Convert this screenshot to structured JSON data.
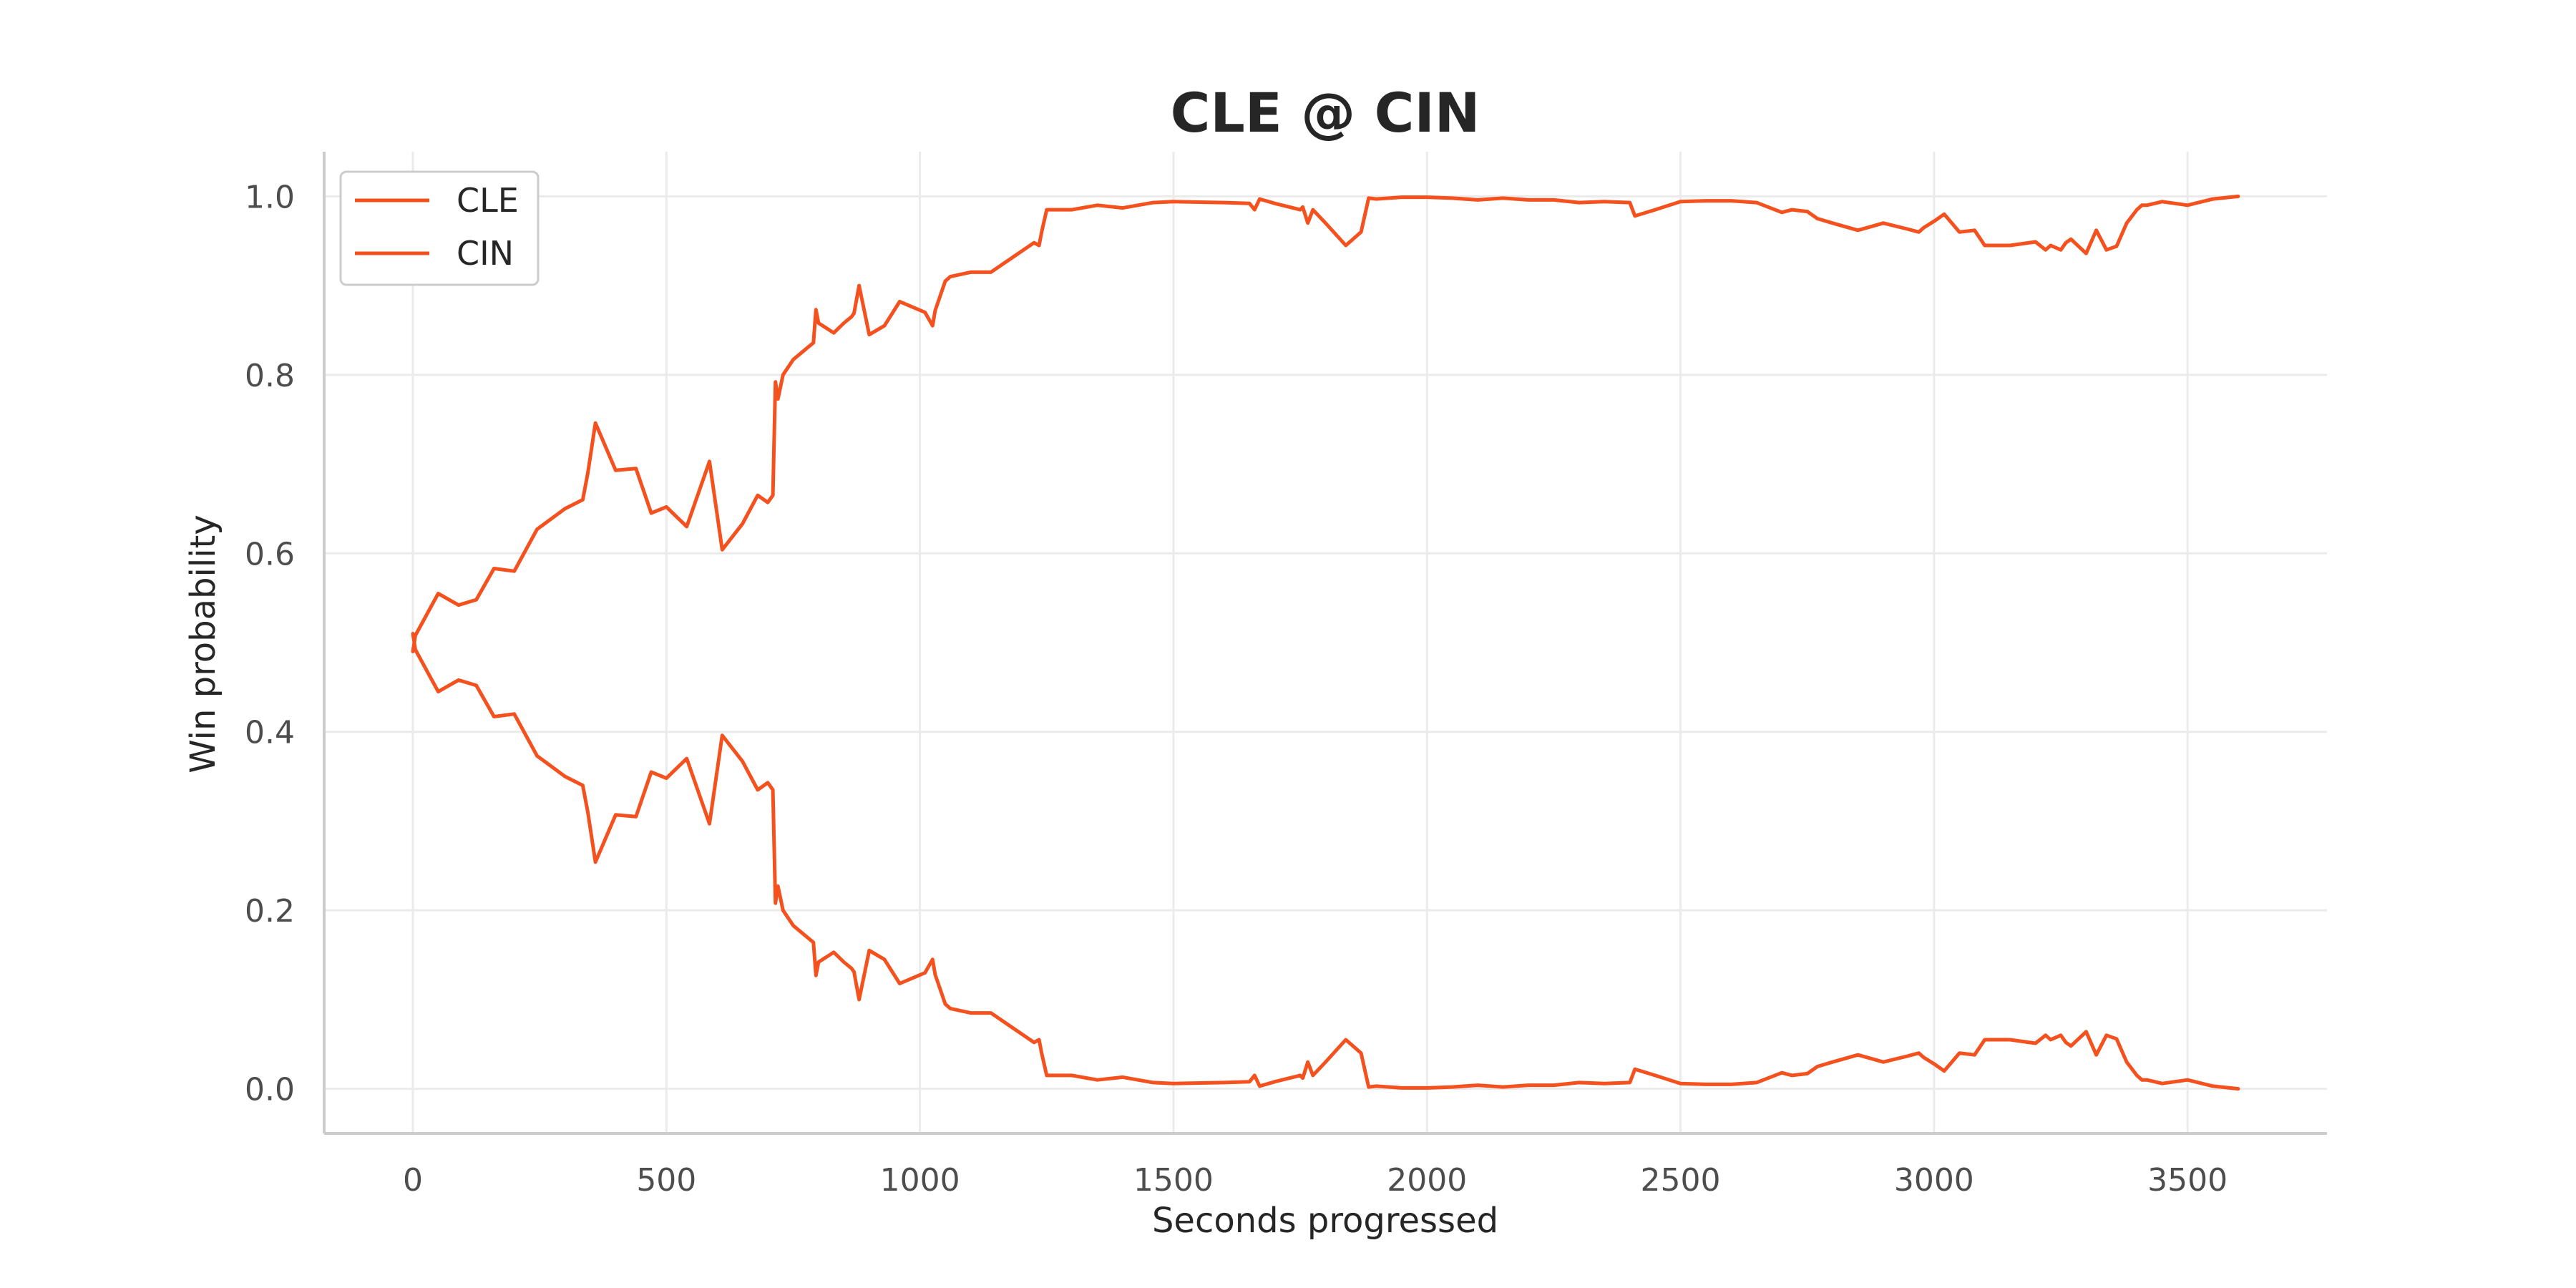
{
  "chart_data": {
    "type": "line",
    "title": "CLE @ CIN",
    "xlabel": "Seconds progressed",
    "ylabel": "Win probability",
    "xlim": [
      -175,
      3775
    ],
    "ylim": [
      -0.05,
      1.05
    ],
    "xticks": [
      0,
      500,
      1000,
      1500,
      2000,
      2500,
      3000,
      3500
    ],
    "yticks": [
      0.0,
      0.2,
      0.4,
      0.6,
      0.8,
      1.0
    ],
    "xtick_labels": [
      "0",
      "500",
      "1000",
      "1500",
      "2000",
      "2500",
      "3000",
      "3500"
    ],
    "ytick_labels": [
      "0.0",
      "0.2",
      "0.4",
      "0.6",
      "0.8",
      "1.0"
    ],
    "grid": true,
    "legend_position": "top-left",
    "colors": {
      "CLE": "#f4511e",
      "CIN": "#f4511e",
      "grid": "#ebebeb",
      "axis": "#cccccc"
    },
    "series": [
      {
        "name": "CLE",
        "x": [
          0,
          5,
          50,
          90,
          125,
          160,
          200,
          245,
          300,
          335,
          345,
          360,
          400,
          440,
          470,
          500,
          540,
          585,
          610,
          650,
          680,
          700,
          710,
          715,
          720,
          730,
          750,
          790,
          795,
          800,
          830,
          850,
          865,
          870,
          880,
          900,
          930,
          960,
          1010,
          1025,
          1030,
          1050,
          1060,
          1100,
          1140,
          1225,
          1235,
          1240,
          1250,
          1300,
          1350,
          1400,
          1460,
          1500,
          1600,
          1650,
          1660,
          1670,
          1700,
          1750,
          1755,
          1765,
          1775,
          1800,
          1840,
          1870,
          1885,
          1900,
          1950,
          2000,
          2050,
          2100,
          2150,
          2200,
          2250,
          2300,
          2350,
          2400,
          2410,
          2450,
          2500,
          2550,
          2600,
          2650,
          2700,
          2720,
          2750,
          2770,
          2800,
          2850,
          2900,
          2950,
          2970,
          2980,
          3000,
          3020,
          3050,
          3080,
          3100,
          3150,
          3200,
          3220,
          3230,
          3250,
          3260,
          3270,
          3300,
          3320,
          3340,
          3360,
          3380,
          3400,
          3410,
          3420,
          3450,
          3500,
          3550,
          3600
        ],
        "y": [
          0.49,
          0.508,
          0.555,
          0.542,
          0.548,
          0.583,
          0.58,
          0.627,
          0.65,
          0.66,
          0.69,
          0.746,
          0.693,
          0.695,
          0.645,
          0.652,
          0.63,
          0.703,
          0.604,
          0.633,
          0.665,
          0.657,
          0.665,
          0.792,
          0.773,
          0.8,
          0.817,
          0.836,
          0.873,
          0.858,
          0.847,
          0.858,
          0.865,
          0.869,
          0.9,
          0.845,
          0.855,
          0.882,
          0.87,
          0.855,
          0.872,
          0.905,
          0.91,
          0.915,
          0.915,
          0.948,
          0.945,
          0.96,
          0.985,
          0.985,
          0.99,
          0.987,
          0.993,
          0.994,
          0.993,
          0.992,
          0.985,
          0.997,
          0.992,
          0.985,
          0.988,
          0.97,
          0.985,
          0.97,
          0.945,
          0.96,
          0.998,
          0.997,
          0.999,
          0.999,
          0.998,
          0.996,
          0.998,
          0.996,
          0.996,
          0.993,
          0.994,
          0.993,
          0.978,
          0.985,
          0.994,
          0.995,
          0.995,
          0.993,
          0.982,
          0.985,
          0.983,
          0.975,
          0.97,
          0.962,
          0.97,
          0.963,
          0.96,
          0.965,
          0.972,
          0.98,
          0.96,
          0.962,
          0.945,
          0.945,
          0.949,
          0.94,
          0.945,
          0.94,
          0.948,
          0.952,
          0.936,
          0.962,
          0.94,
          0.944,
          0.97,
          0.985,
          0.99,
          0.99,
          0.994,
          0.99,
          0.997,
          1.0
        ]
      },
      {
        "name": "CIN",
        "x": [
          0,
          5,
          50,
          90,
          125,
          160,
          200,
          245,
          300,
          335,
          345,
          360,
          400,
          440,
          470,
          500,
          540,
          585,
          610,
          650,
          680,
          700,
          710,
          715,
          720,
          730,
          750,
          790,
          795,
          800,
          830,
          850,
          865,
          870,
          880,
          900,
          930,
          960,
          1010,
          1025,
          1030,
          1050,
          1060,
          1100,
          1140,
          1225,
          1235,
          1240,
          1250,
          1300,
          1350,
          1400,
          1460,
          1500,
          1600,
          1650,
          1660,
          1670,
          1700,
          1750,
          1755,
          1765,
          1775,
          1800,
          1840,
          1870,
          1885,
          1900,
          1950,
          2000,
          2050,
          2100,
          2150,
          2200,
          2250,
          2300,
          2350,
          2400,
          2410,
          2450,
          2500,
          2550,
          2600,
          2650,
          2700,
          2720,
          2750,
          2770,
          2800,
          2850,
          2900,
          2950,
          2970,
          2980,
          3000,
          3020,
          3050,
          3080,
          3100,
          3150,
          3200,
          3220,
          3230,
          3250,
          3260,
          3270,
          3300,
          3320,
          3340,
          3360,
          3380,
          3400,
          3410,
          3420,
          3450,
          3500,
          3550,
          3600
        ],
        "y": [
          0.51,
          0.492,
          0.445,
          0.458,
          0.452,
          0.417,
          0.42,
          0.373,
          0.35,
          0.34,
          0.31,
          0.254,
          0.307,
          0.305,
          0.355,
          0.348,
          0.37,
          0.297,
          0.396,
          0.367,
          0.335,
          0.343,
          0.335,
          0.208,
          0.227,
          0.2,
          0.183,
          0.164,
          0.127,
          0.142,
          0.153,
          0.142,
          0.135,
          0.131,
          0.1,
          0.155,
          0.145,
          0.118,
          0.13,
          0.145,
          0.128,
          0.095,
          0.09,
          0.085,
          0.085,
          0.052,
          0.055,
          0.04,
          0.015,
          0.015,
          0.01,
          0.013,
          0.007,
          0.006,
          0.007,
          0.008,
          0.015,
          0.003,
          0.008,
          0.015,
          0.012,
          0.03,
          0.015,
          0.03,
          0.055,
          0.04,
          0.002,
          0.003,
          0.001,
          0.001,
          0.002,
          0.004,
          0.002,
          0.004,
          0.004,
          0.007,
          0.006,
          0.007,
          0.022,
          0.015,
          0.006,
          0.005,
          0.005,
          0.007,
          0.018,
          0.015,
          0.017,
          0.025,
          0.03,
          0.038,
          0.03,
          0.037,
          0.04,
          0.035,
          0.028,
          0.02,
          0.04,
          0.038,
          0.055,
          0.055,
          0.051,
          0.06,
          0.055,
          0.06,
          0.052,
          0.048,
          0.064,
          0.038,
          0.06,
          0.056,
          0.03,
          0.015,
          0.01,
          0.01,
          0.006,
          0.01,
          0.003,
          0.0
        ]
      }
    ]
  }
}
